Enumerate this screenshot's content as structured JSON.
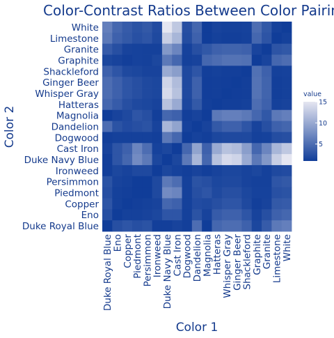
{
  "chart_data": {
    "type": "heatmap",
    "title": "Color-Contrast Ratios Between Color Pairin",
    "xlabel": "Color 1",
    "ylabel": "Color 2",
    "x": [
      "Duke Royal Blue",
      "Eno",
      "Copper",
      "Piedmont",
      "Persimmon",
      "Ironweed",
      "Duke Navy Blue",
      "Cast Iron",
      "Dogwood",
      "Dandelion",
      "Magnolia",
      "Hatteras",
      "Whisper Gray",
      "Ginger Beer",
      "Shackleford",
      "Graphite",
      "Granite",
      "Limestone",
      "White"
    ],
    "y": [
      "White",
      "Limestone",
      "Granite",
      "Graphite",
      "Shackleford",
      "Ginger Beer",
      "Whisper Gray",
      "Hatteras",
      "Magnolia",
      "Dandelion",
      "Dogwood",
      "Cast Iron",
      "Duke Navy Blue",
      "Ironweed",
      "Persimmon",
      "Piedmont",
      "Copper",
      "Eno",
      "Duke Royal Blue"
    ],
    "z": [
      [
        6.5,
        4.5,
        3.5,
        2.8,
        3.3,
        2.2,
        15.0,
        12.5,
        2.5,
        4.4,
        1.0,
        1.5,
        1.3,
        1.3,
        1.4,
        5.0,
        3.2,
        1.3,
        1.0
      ],
      [
        6.0,
        4.0,
        3.3,
        2.6,
        3.0,
        2.0,
        13.0,
        11.0,
        2.3,
        4.0,
        1.0,
        1.3,
        1.2,
        1.2,
        1.3,
        4.5,
        2.9,
        1.0,
        1.3
      ],
      [
        3.5,
        2.5,
        1.5,
        1.4,
        1.3,
        1.3,
        8.5,
        7.0,
        1.4,
        2.5,
        3.2,
        4.0,
        4.2,
        4.2,
        4.0,
        1.6,
        1.0,
        2.9,
        3.2
      ],
      [
        1.8,
        1.5,
        1.2,
        1.4,
        1.3,
        1.8,
        6.0,
        4.5,
        1.3,
        1.5,
        4.5,
        5.0,
        5.5,
        5.5,
        5.3,
        1.0,
        1.6,
        4.5,
        5.0
      ],
      [
        4.0,
        3.0,
        2.0,
        1.8,
        1.5,
        1.5,
        10.0,
        9.0,
        2.0,
        3.0,
        1.2,
        1.3,
        1.2,
        1.2,
        1.0,
        5.3,
        4.0,
        1.3,
        1.4
      ],
      [
        5.0,
        4.0,
        3.0,
        2.5,
        2.0,
        1.8,
        13.5,
        11.5,
        2.0,
        4.0,
        1.1,
        1.2,
        1.1,
        1.0,
        1.2,
        5.5,
        4.2,
        1.2,
        1.3
      ],
      [
        5.0,
        4.0,
        3.0,
        2.5,
        2.0,
        1.8,
        14.0,
        12.0,
        2.0,
        4.0,
        1.1,
        1.2,
        1.0,
        1.1,
        1.2,
        5.5,
        4.2,
        1.2,
        1.3
      ],
      [
        4.5,
        3.5,
        2.5,
        2.0,
        1.8,
        1.5,
        12.0,
        10.0,
        1.8,
        3.3,
        1.2,
        1.0,
        1.2,
        1.2,
        1.3,
        5.0,
        4.0,
        1.3,
        1.5
      ],
      [
        1.0,
        1.5,
        2.0,
        3.0,
        2.5,
        1.2,
        4.5,
        4.0,
        1.2,
        1.5,
        1.0,
        6.0,
        6.5,
        6.5,
        6.0,
        4.5,
        3.2,
        6.0,
        6.5
      ],
      [
        5.0,
        2.8,
        2.2,
        2.5,
        2.8,
        1.5,
        11.0,
        9.5,
        1.4,
        1.0,
        1.5,
        3.3,
        4.0,
        4.0,
        3.0,
        1.5,
        2.5,
        4.0,
        4.4
      ],
      [
        1.2,
        1.3,
        1.3,
        1.3,
        1.3,
        1.2,
        6.0,
        4.5,
        1.0,
        1.4,
        1.2,
        1.8,
        2.0,
        2.0,
        2.0,
        1.3,
        1.4,
        2.3,
        2.5
      ],
      [
        1.5,
        3.0,
        4.0,
        7.0,
        5.0,
        1.4,
        1.8,
        1.0,
        4.5,
        9.5,
        4.0,
        10.0,
        12.0,
        11.5,
        9.0,
        4.5,
        7.0,
        11.0,
        12.5
      ],
      [
        1.2,
        3.0,
        4.5,
        7.5,
        6.0,
        1.8,
        1.0,
        1.8,
        6.0,
        11.0,
        4.5,
        12.0,
        14.0,
        13.5,
        10.0,
        6.0,
        8.5,
        13.0,
        15.0
      ],
      [
        1.2,
        1.8,
        1.5,
        2.0,
        2.0,
        1.0,
        1.8,
        1.4,
        1.2,
        1.5,
        1.2,
        1.5,
        1.8,
        1.8,
        1.5,
        1.8,
        1.3,
        2.0,
        2.2
      ],
      [
        2.8,
        1.5,
        1.3,
        1.0,
        1.0,
        2.0,
        6.0,
        5.0,
        1.3,
        2.8,
        2.5,
        1.8,
        2.0,
        2.0,
        1.5,
        1.3,
        1.3,
        3.0,
        3.3
      ],
      [
        2.5,
        1.3,
        1.2,
        1.0,
        1.0,
        2.0,
        7.5,
        7.0,
        1.3,
        2.5,
        3.0,
        2.0,
        2.5,
        2.5,
        1.8,
        1.4,
        1.4,
        2.6,
        2.8
      ],
      [
        3.0,
        1.3,
        1.0,
        1.2,
        1.3,
        1.5,
        4.5,
        4.0,
        1.3,
        2.2,
        2.0,
        2.5,
        3.0,
        3.0,
        2.0,
        1.2,
        1.5,
        3.3,
        3.5
      ],
      [
        2.5,
        1.0,
        1.3,
        1.3,
        1.5,
        1.8,
        3.0,
        3.0,
        1.3,
        2.8,
        1.5,
        3.5,
        4.0,
        4.0,
        3.0,
        1.5,
        2.5,
        4.0,
        4.5
      ],
      [
        1.0,
        2.5,
        3.0,
        2.5,
        2.8,
        1.2,
        1.2,
        1.5,
        1.2,
        5.0,
        1.0,
        4.5,
        5.0,
        5.0,
        4.0,
        1.8,
        3.5,
        6.0,
        6.5
      ]
    ],
    "zlim": [
      1,
      15
    ],
    "colorbar": {
      "title": "value",
      "ticks": [
        5,
        10,
        15
      ],
      "color_low": "#103d99",
      "color_high": "#e5e6f1"
    },
    "grid": false,
    "legend": "right"
  }
}
